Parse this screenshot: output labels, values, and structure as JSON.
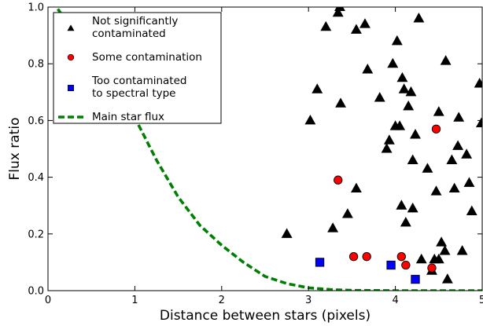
{
  "chart_data": {
    "type": "scatter",
    "xlabel": "Distance between stars (pixels)",
    "ylabel": "Flux ratio",
    "xlim": [
      0,
      5
    ],
    "ylim": [
      0,
      1
    ],
    "x_ticks": [
      "0",
      "1",
      "2",
      "3",
      "4",
      "5"
    ],
    "y_ticks": [
      "0.0",
      "0.2",
      "0.4",
      "0.6",
      "0.8",
      "1.0"
    ],
    "grid": false,
    "legend_position": "top-left",
    "series": [
      {
        "name": "Not significantly contaminated",
        "name_lines": [
          "Not significantly",
          "contaminated"
        ],
        "marker": "triangle",
        "color": "#000000",
        "points": [
          [
            2.75,
            0.2
          ],
          [
            3.02,
            0.6
          ],
          [
            3.1,
            0.71
          ],
          [
            3.2,
            0.93
          ],
          [
            3.28,
            0.22
          ],
          [
            3.34,
            0.98
          ],
          [
            3.36,
            1.0
          ],
          [
            3.37,
            0.66
          ],
          [
            3.45,
            0.27
          ],
          [
            3.55,
            0.36
          ],
          [
            3.55,
            0.92
          ],
          [
            3.65,
            0.94
          ],
          [
            3.68,
            0.78
          ],
          [
            3.82,
            0.68
          ],
          [
            3.9,
            0.5
          ],
          [
            3.93,
            0.53
          ],
          [
            3.97,
            0.8
          ],
          [
            4.0,
            0.58
          ],
          [
            4.02,
            0.88
          ],
          [
            4.05,
            0.58
          ],
          [
            4.07,
            0.3
          ],
          [
            4.08,
            0.75
          ],
          [
            4.1,
            0.71
          ],
          [
            4.12,
            0.24
          ],
          [
            4.15,
            0.65
          ],
          [
            4.18,
            0.7
          ],
          [
            4.2,
            0.29
          ],
          [
            4.2,
            0.46
          ],
          [
            4.23,
            0.55
          ],
          [
            4.27,
            0.96
          ],
          [
            4.3,
            0.11
          ],
          [
            4.37,
            0.43
          ],
          [
            4.42,
            0.07
          ],
          [
            4.45,
            0.11
          ],
          [
            4.47,
            0.35
          ],
          [
            4.5,
            0.11
          ],
          [
            4.5,
            0.63
          ],
          [
            4.53,
            0.17
          ],
          [
            4.57,
            0.14
          ],
          [
            4.58,
            0.81
          ],
          [
            4.6,
            0.04
          ],
          [
            4.65,
            0.46
          ],
          [
            4.68,
            0.36
          ],
          [
            4.72,
            0.51
          ],
          [
            4.73,
            0.61
          ],
          [
            4.77,
            0.14
          ],
          [
            4.82,
            0.48
          ],
          [
            4.85,
            0.38
          ],
          [
            4.88,
            0.28
          ],
          [
            4.97,
            0.73
          ],
          [
            4.99,
            0.59
          ]
        ]
      },
      {
        "name": "Some contamination",
        "name_lines": [
          "Some contamination"
        ],
        "marker": "circle",
        "color": "#ff0000",
        "points": [
          [
            3.34,
            0.39
          ],
          [
            3.52,
            0.12
          ],
          [
            3.67,
            0.12
          ],
          [
            4.07,
            0.12
          ],
          [
            4.12,
            0.09
          ],
          [
            4.42,
            0.08
          ],
          [
            4.47,
            0.57
          ]
        ]
      },
      {
        "name": "Too contaminated to spectral type",
        "name_lines": [
          "Too contaminated",
          "to spectral type"
        ],
        "marker": "square",
        "color": "#0000ff",
        "points": [
          [
            3.13,
            0.1
          ],
          [
            3.95,
            0.09
          ],
          [
            4.23,
            0.04
          ]
        ]
      },
      {
        "name": "Main star flux",
        "name_lines": [
          "Main star flux"
        ],
        "marker": "dashed-line",
        "color": "#008000",
        "points": [
          [
            0.0,
            1.05
          ],
          [
            0.1,
            1.0
          ],
          [
            0.25,
            0.93
          ],
          [
            0.5,
            0.81
          ],
          [
            0.75,
            0.7
          ],
          [
            1.0,
            0.61
          ],
          [
            1.25,
            0.46
          ],
          [
            1.5,
            0.33
          ],
          [
            1.75,
            0.23
          ],
          [
            2.0,
            0.16
          ],
          [
            2.25,
            0.1
          ],
          [
            2.5,
            0.05
          ],
          [
            2.75,
            0.025
          ],
          [
            3.0,
            0.01
          ],
          [
            3.25,
            0.004
          ],
          [
            3.5,
            0.001
          ],
          [
            4.0,
            0.0
          ],
          [
            5.0,
            0.0
          ]
        ]
      }
    ]
  }
}
